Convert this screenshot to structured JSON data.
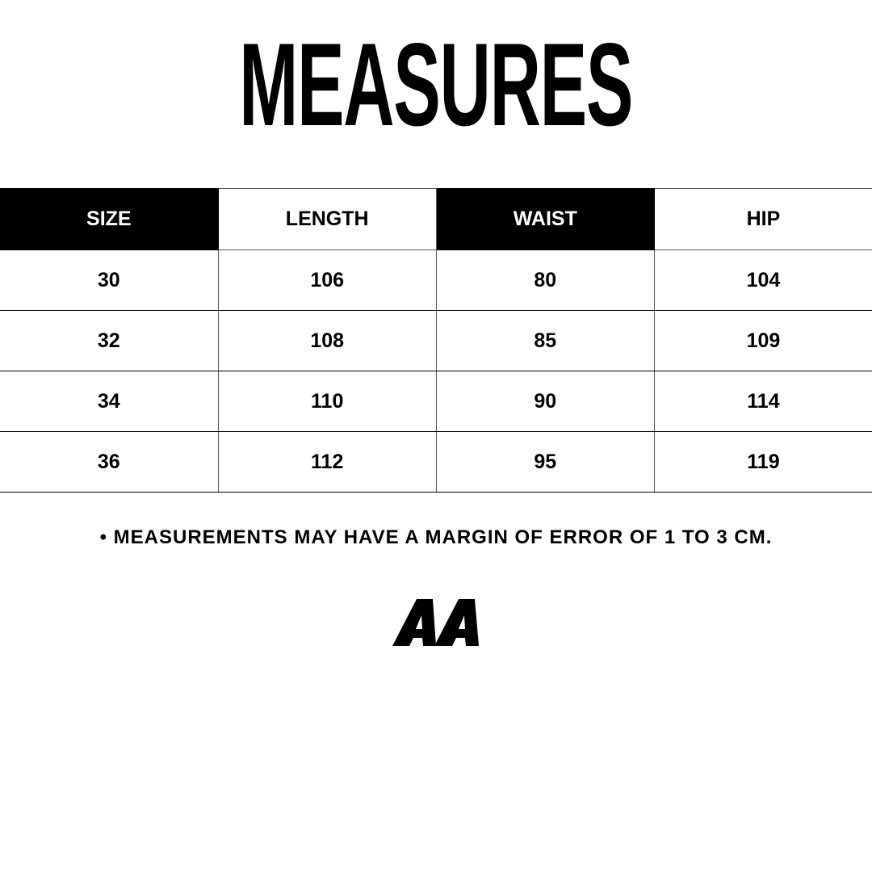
{
  "title": "MEASURES",
  "table": {
    "headers": [
      "SIZE",
      "LENGTH",
      "WAIST",
      "HIP"
    ],
    "rows": [
      [
        "30",
        "106",
        "80",
        "104"
      ],
      [
        "32",
        "108",
        "85",
        "109"
      ],
      [
        "34",
        "110",
        "90",
        "114"
      ],
      [
        "36",
        "112",
        "95",
        "119"
      ]
    ]
  },
  "note": "• MEASUREMENTS MAY HAVE A MARGIN OF ERROR OF 1 TO 3 CM.",
  "logo": {
    "text": "AA",
    "color": "#000000"
  }
}
